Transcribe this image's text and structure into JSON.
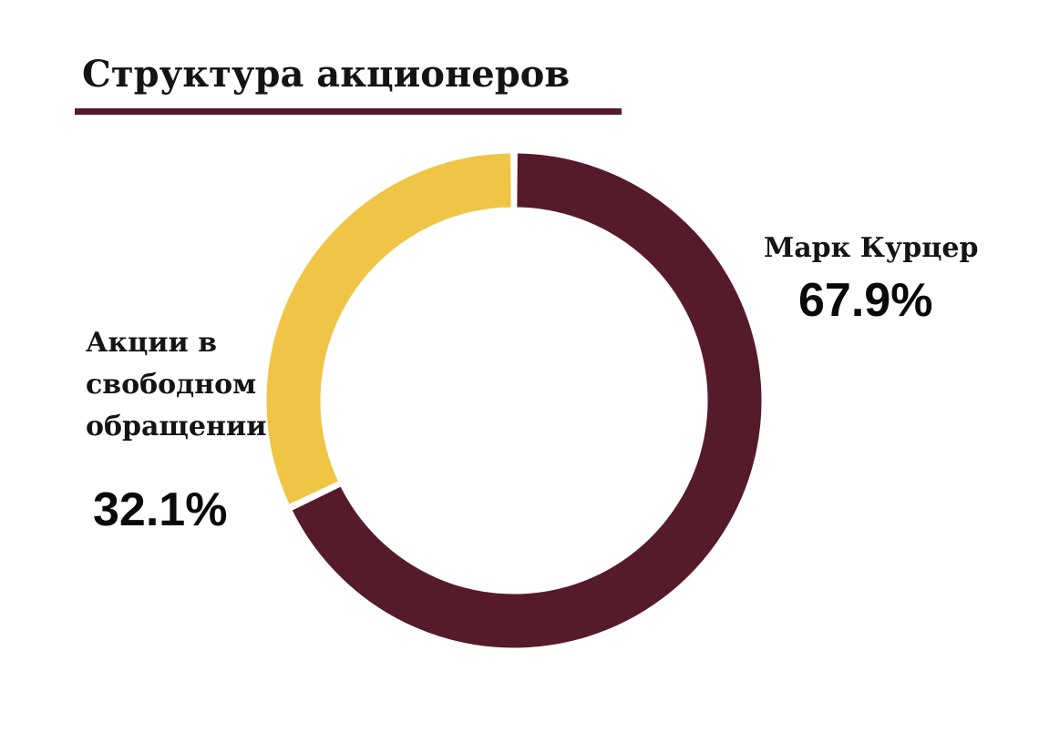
{
  "chart_data": {
    "type": "pie",
    "title": "Структура акционеров",
    "donut": true,
    "categories": [
      "Марк Курцер",
      "Акции в свободном обращении"
    ],
    "values": [
      67.9,
      32.1
    ],
    "value_labels": [
      "67.9%",
      "32.1%"
    ],
    "unit": "%",
    "colors": [
      "#561b2a",
      "#f0c445"
    ],
    "legend": "none"
  },
  "colors": {
    "accent_rule": "#561b2a"
  }
}
